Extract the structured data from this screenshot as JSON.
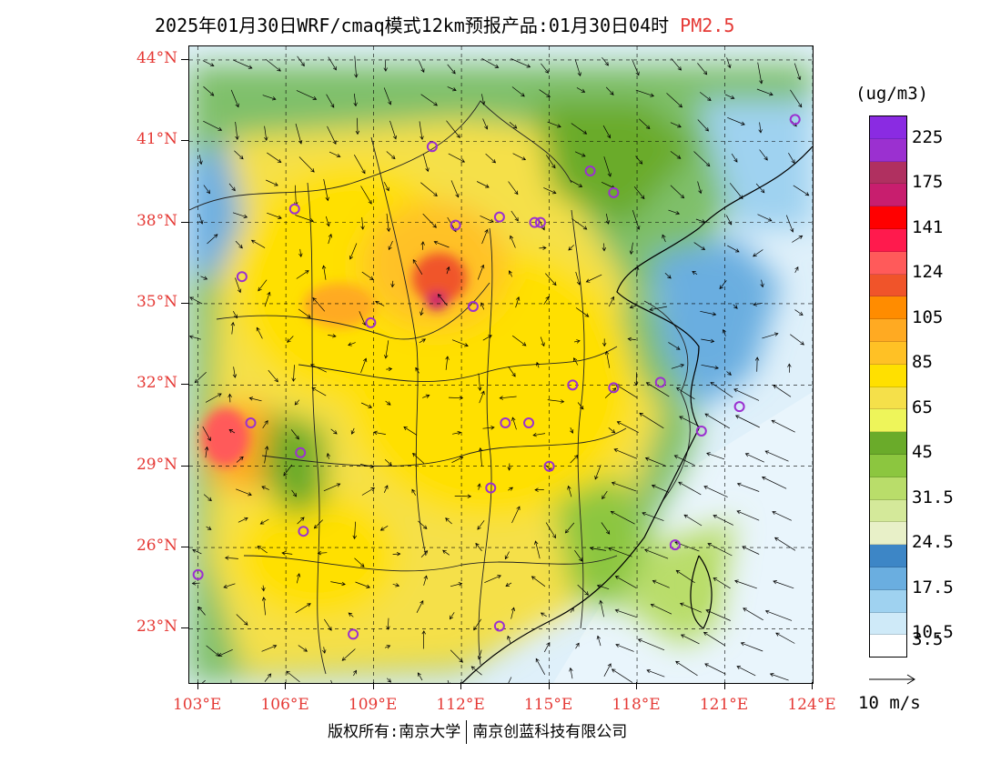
{
  "title": {
    "main": "2025年01月30日WRF/cmaq模式12km预报产品:01月30日04时",
    "pollutant": "PM2.5"
  },
  "map": {
    "lat_ticks": [
      "44°N",
      "41°N",
      "38°N",
      "35°N",
      "32°N",
      "29°N",
      "26°N",
      "23°N"
    ],
    "lon_ticks": [
      "103°E",
      "106°E",
      "109°E",
      "112°E",
      "115°E",
      "118°E",
      "121°E",
      "124°E"
    ],
    "lat_range": [
      21.0,
      44.5
    ],
    "lon_range": [
      102.7,
      124.0
    ],
    "cities": [
      [
        103.0,
        25.0
      ],
      [
        104.5,
        36.0
      ],
      [
        104.8,
        30.6
      ],
      [
        106.5,
        29.5
      ],
      [
        106.6,
        26.6
      ],
      [
        106.3,
        38.5
      ],
      [
        108.9,
        34.3
      ],
      [
        108.3,
        22.8
      ],
      [
        111.0,
        40.8
      ],
      [
        111.8,
        37.9
      ],
      [
        113.3,
        38.2
      ],
      [
        112.4,
        34.9
      ],
      [
        113.0,
        28.2
      ],
      [
        113.5,
        30.6
      ],
      [
        113.3,
        23.1
      ],
      [
        114.5,
        38.0
      ],
      [
        114.7,
        38.0
      ],
      [
        115.0,
        29.0
      ],
      [
        115.8,
        32.0
      ],
      [
        117.2,
        31.9
      ],
      [
        118.8,
        32.1
      ],
      [
        120.2,
        30.3
      ],
      [
        119.3,
        26.1
      ],
      [
        116.4,
        39.9
      ],
      [
        117.2,
        39.1
      ],
      [
        121.5,
        31.2
      ],
      [
        123.4,
        41.8
      ],
      [
        114.3,
        30.6
      ]
    ]
  },
  "legend": {
    "unit": "(ug/m3)",
    "bins_top_to_bottom": [
      "#8a2be2",
      "#9b30d0",
      "#b03060",
      "#c81e6e",
      "#ff0000",
      "#ff1a4d",
      "#ff5a5a",
      "#f0542a",
      "#ff8c00",
      "#ffaa22",
      "#ffc125",
      "#ffe000",
      "#f5e04a",
      "#eef55a",
      "#6aab2a",
      "#8cc63f",
      "#b9dd6a",
      "#d4e99a",
      "#e8f0c8",
      "#3d86c6",
      "#6aaee0",
      "#9fd2f0",
      "#cfeaf8",
      "#ffffff"
    ],
    "labels": [
      "225",
      "175",
      "141",
      "124",
      "105",
      "85",
      "65",
      "45",
      "31.5",
      "24.5",
      "17.5",
      "10.5",
      "3.5"
    ]
  },
  "vector_reference": {
    "label": "10 m/s"
  },
  "copyright": {
    "left": "版权所有:南京大学",
    "right": "南京创蓝科技有限公司"
  }
}
